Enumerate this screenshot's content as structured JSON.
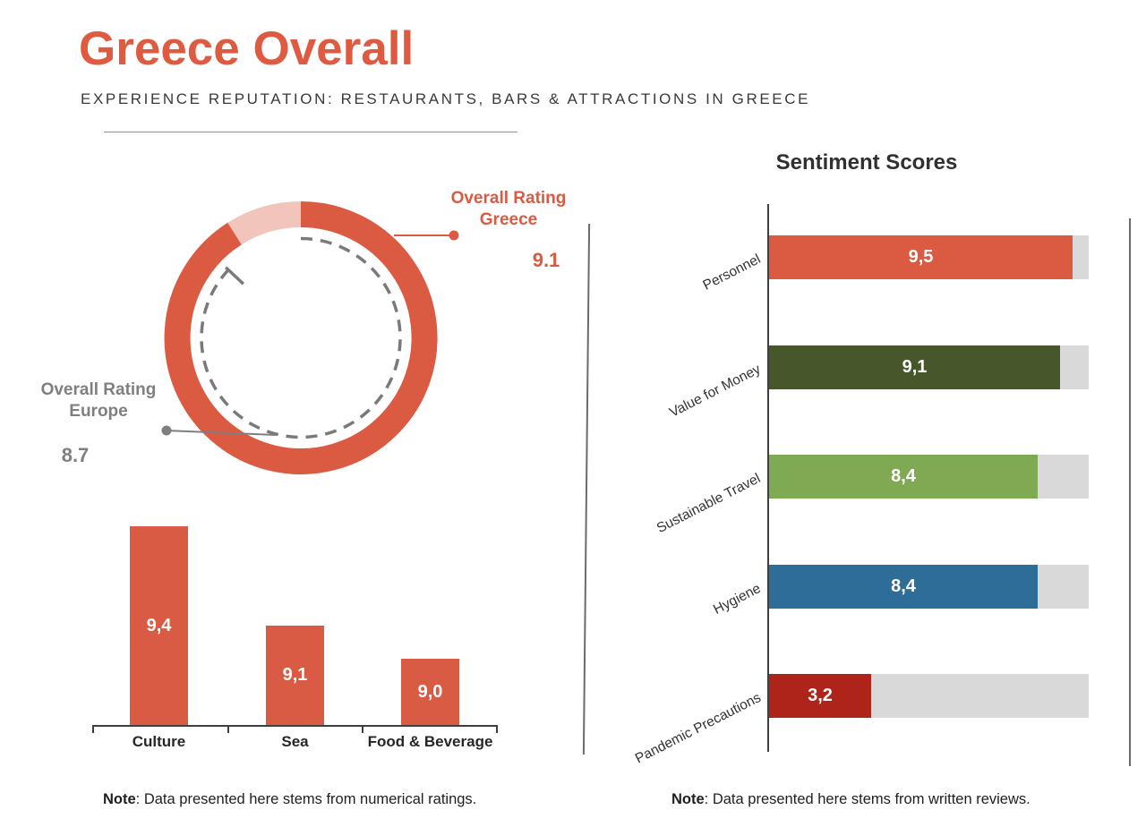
{
  "header": {
    "title": "Greece Overall",
    "subtitle": "EXPERIENCE REPUTATION: RESTAURANTS, BARS & ATTRACTIONS IN GREECE"
  },
  "colors": {
    "title_orange": "#DE5B41",
    "orange": "#DB5A42",
    "pink_remainder": "#F2C5BC",
    "gray_label": "#7F7F7F",
    "dashed_gray": "#7A7A7A",
    "dark_green": "#46582B",
    "light_green": "#7FA953",
    "blue": "#2F6D99",
    "dark_red": "#AE241A",
    "track_gray": "#D9D9D9",
    "axis_dark": "#3F3F3F",
    "white": "#FFFFFF"
  },
  "donut": {
    "greece": {
      "line1": "Overall Rating",
      "line2": "Greece",
      "value": "9.1"
    },
    "europe": {
      "line1": "Overall Rating",
      "line2": "Europe",
      "value": "8.7"
    }
  },
  "sentiment": {
    "title": "Sentiment Scores"
  },
  "notes": {
    "ratings": {
      "bold": "Note",
      "text": ": Data presented here stems from numerical ratings."
    },
    "sentiment": {
      "bold": "Note",
      "text": ": Data presented here stems from written reviews."
    }
  },
  "chart_data": [
    {
      "type": "donut",
      "description": "Concentric gauge: solid orange ring = Greece overall rating, inner dashed gray circle = Europe overall rating",
      "series": [
        {
          "name": "Overall Rating Greece",
          "value": 9.1,
          "display": "9.1",
          "style": "solid-ring",
          "color": "#DB5A42",
          "remainder_color": "#F2C5BC"
        },
        {
          "name": "Overall Rating Europe",
          "value": 8.7,
          "display": "8.7",
          "style": "dashed-circle",
          "color": "#7A7A7A"
        }
      ],
      "max": 10
    },
    {
      "type": "bar",
      "title": "",
      "categories": [
        "Culture",
        "Sea",
        "Food & Beverage"
      ],
      "values": [
        9.4,
        9.1,
        9.0
      ],
      "value_labels": [
        "9,4",
        "9,1",
        "9,0"
      ],
      "bar_color": "#D95B43",
      "baseline": 8.8,
      "ylim": [
        8.8,
        9.4
      ],
      "grid": false,
      "note": "Note: Data presented here stems from numerical ratings."
    },
    {
      "type": "bar-horizontal",
      "title": "Sentiment Scores",
      "categories": [
        "Personnel",
        "Value for Money",
        "Sustainable Travel",
        "Hygiene",
        "Pandemic Precautions"
      ],
      "values": [
        9.5,
        9.1,
        8.4,
        8.4,
        3.2
      ],
      "value_labels": [
        "9,5",
        "9,1",
        "8,4",
        "8,4",
        "3,2"
      ],
      "colors": [
        "#DB5A42",
        "#46582B",
        "#7FA953",
        "#2F6D99",
        "#AE241A"
      ],
      "track_color": "#D9D9D9",
      "xlim": [
        0,
        10
      ],
      "grid": false,
      "note": "Note: Data presented here stems from written reviews."
    }
  ]
}
